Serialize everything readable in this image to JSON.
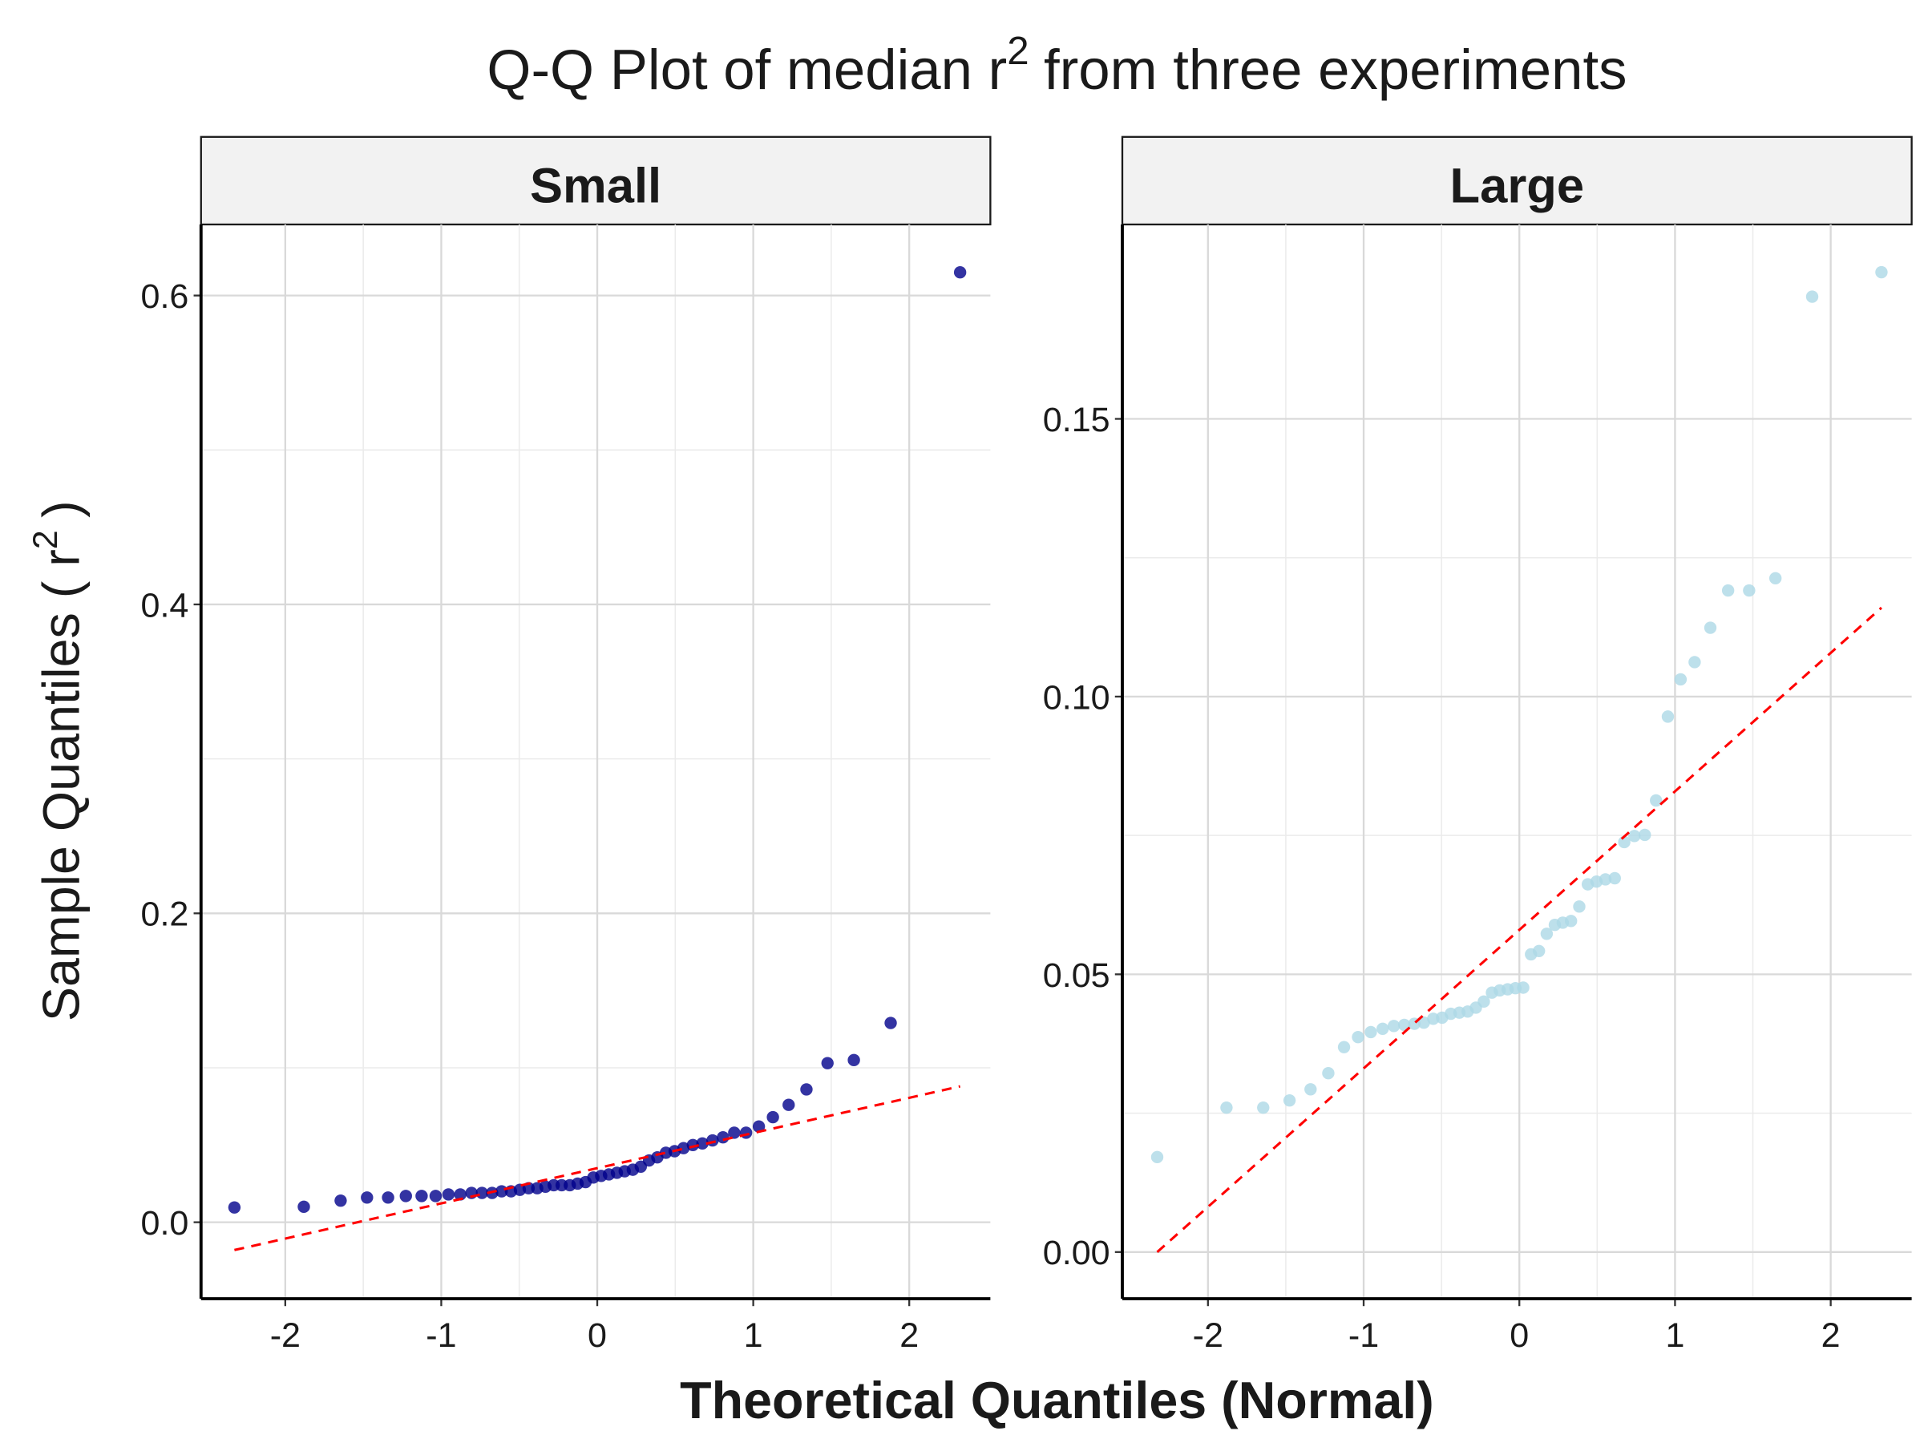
{
  "title": [
    "Q-Q Plot of median r",
    "2",
    "from three experiments"
  ],
  "x_label": "Theoretical Quantiles (Normal)",
  "y_label": [
    "Sample Quantiles ( r",
    "2",
    ")"
  ],
  "chart_data": [
    {
      "type": "scatter",
      "facet": "Small",
      "color": "#00008b",
      "xlim": [
        -2.54,
        2.52
      ],
      "ylim": [
        -0.0495,
        0.646
      ],
      "xticks": [
        -2,
        -1,
        0,
        1,
        2
      ],
      "yticks": [
        {
          "value": 0,
          "label": "0.0"
        },
        0.2,
        0.4,
        0.6
      ],
      "grid": true,
      "minor_grid": true,
      "x": [
        -2.326,
        -1.881,
        -1.645,
        -1.476,
        -1.341,
        -1.227,
        -1.126,
        -1.036,
        -0.954,
        -0.878,
        -0.806,
        -0.739,
        -0.674,
        -0.613,
        -0.553,
        -0.496,
        -0.44,
        -0.385,
        -0.332,
        -0.279,
        -0.228,
        -0.176,
        -0.126,
        -0.075,
        -0.025,
        0.025,
        0.075,
        0.126,
        0.176,
        0.228,
        0.279,
        0.332,
        0.385,
        0.44,
        0.496,
        0.553,
        0.613,
        0.674,
        0.739,
        0.806,
        0.878,
        0.954,
        1.036,
        1.126,
        1.227,
        1.341,
        1.476,
        1.645,
        1.881,
        2.326
      ],
      "values": [
        0.0096,
        0.01,
        0.014,
        0.016,
        0.016,
        0.017,
        0.017,
        0.017,
        0.018,
        0.018,
        0.019,
        0.019,
        0.019,
        0.02,
        0.02,
        0.021,
        0.022,
        0.022,
        0.023,
        0.024,
        0.024,
        0.024,
        0.025,
        0.026,
        0.029,
        0.03,
        0.031,
        0.032,
        0.033,
        0.034,
        0.036,
        0.04,
        0.042,
        0.045,
        0.046,
        0.048,
        0.05,
        0.051,
        0.053,
        0.055,
        0.058,
        0.058,
        0.062,
        0.068,
        0.076,
        0.086,
        0.103,
        0.105,
        0.129,
        0.615
      ],
      "reference_line": {
        "color": "#ff0000",
        "x": [
          -2.326,
          2.326
        ],
        "values": [
          -0.018,
          0.088
        ]
      }
    },
    {
      "type": "scatter",
      "facet": "Large",
      "color": "#add8e6",
      "xlim": [
        -2.55,
        2.52
      ],
      "ylim": [
        -0.0084,
        0.185
      ],
      "xticks": [
        -2,
        -1,
        0,
        1,
        2
      ],
      "yticks": [
        {
          "value": 0,
          "label": "0.00"
        },
        {
          "value": 0.05,
          "label": "0.05"
        },
        {
          "value": 0.1,
          "label": "0.10"
        },
        {
          "value": 0.15,
          "label": "0.15"
        }
      ],
      "grid": true,
      "minor_grid": true,
      "x": [
        -2.326,
        -1.881,
        -1.645,
        -1.476,
        -1.341,
        -1.227,
        -1.126,
        -1.036,
        -0.954,
        -0.878,
        -0.806,
        -0.739,
        -0.674,
        -0.613,
        -0.553,
        -0.496,
        -0.44,
        -0.385,
        -0.332,
        -0.279,
        -0.228,
        -0.176,
        -0.126,
        -0.075,
        -0.025,
        0.025,
        0.075,
        0.126,
        0.176,
        0.228,
        0.279,
        0.332,
        0.385,
        0.44,
        0.496,
        0.553,
        0.613,
        0.674,
        0.739,
        0.806,
        0.878,
        0.954,
        1.036,
        1.126,
        1.227,
        1.341,
        1.476,
        1.645,
        1.881,
        2.326
      ],
      "values": [
        0.0171,
        0.026,
        0.026,
        0.0273,
        0.0293,
        0.0322,
        0.0369,
        0.0387,
        0.0396,
        0.0402,
        0.0407,
        0.0409,
        0.0411,
        0.0413,
        0.042,
        0.0422,
        0.0429,
        0.0431,
        0.0433,
        0.044,
        0.0451,
        0.0467,
        0.0471,
        0.0473,
        0.0475,
        0.0476,
        0.0536,
        0.0542,
        0.0573,
        0.0589,
        0.0593,
        0.0596,
        0.0622,
        0.0662,
        0.0667,
        0.0671,
        0.0673,
        0.0738,
        0.0749,
        0.0751,
        0.0813,
        0.0964,
        0.1031,
        0.1062,
        0.1124,
        0.1191,
        0.1191,
        0.1213,
        0.172,
        0.1764
      ],
      "reference_line": {
        "color": "#ff0000",
        "x": [
          -2.326,
          2.326
        ],
        "values": [
          0.0,
          0.116
        ]
      }
    }
  ]
}
